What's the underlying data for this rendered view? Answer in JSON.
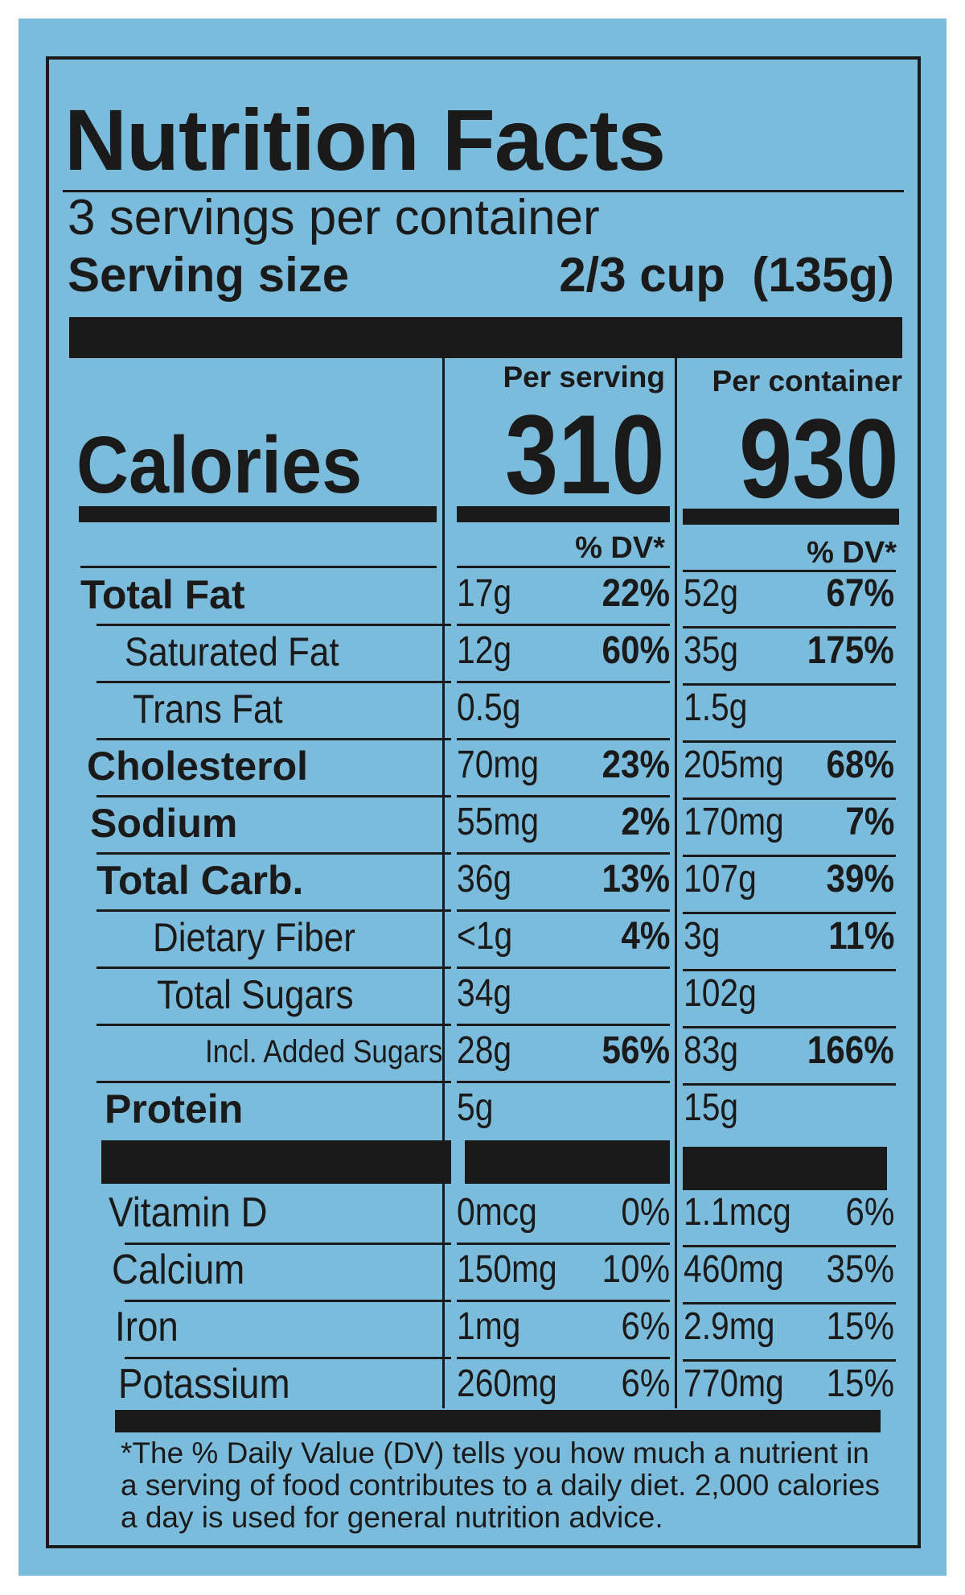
{
  "header": {
    "title": "Nutrition Facts",
    "servings": "3 servings per container",
    "serving_size_label": "Serving size",
    "serving_size_value": "2/3 cup  (135g)"
  },
  "columns": {
    "serving": "Per serving",
    "container": "Per container",
    "dv_heading": "% DV*"
  },
  "calories": {
    "label": "Calories",
    "serving": "310",
    "container": "930"
  },
  "nutrients": [
    {
      "name": "Total Fat",
      "serving": {
        "amount": "17g",
        "dv": "22%"
      },
      "container": {
        "amount": "52g",
        "dv": "67%"
      }
    },
    {
      "name": "Saturated Fat",
      "serving": {
        "amount": "12g",
        "dv": "60%"
      },
      "container": {
        "amount": "35g",
        "dv": "175%"
      }
    },
    {
      "name": "Trans Fat",
      "serving": {
        "amount": "0.5g"
      },
      "container": {
        "amount": "1.5g"
      }
    },
    {
      "name": "Cholesterol",
      "serving": {
        "amount": "70mg",
        "dv": "23%"
      },
      "container": {
        "amount": "205mg",
        "dv": "68%"
      }
    },
    {
      "name": "Sodium",
      "serving": {
        "amount": "55mg",
        "dv": "2%"
      },
      "container": {
        "amount": "170mg",
        "dv": "7%"
      }
    },
    {
      "name": "Total Carb.",
      "serving": {
        "amount": "36g",
        "dv": "13%"
      },
      "container": {
        "amount": "107g",
        "dv": "39%"
      }
    },
    {
      "name": "Dietary Fiber",
      "serving": {
        "amount": "<1g",
        "dv": "4%"
      },
      "container": {
        "amount": "3g",
        "dv": "11%"
      }
    },
    {
      "name": "Total Sugars",
      "serving": {
        "amount": "34g"
      },
      "container": {
        "amount": "102g"
      }
    },
    {
      "name": "Incl. Added Sugars",
      "serving": {
        "amount": "28g",
        "dv": "56%"
      },
      "container": {
        "amount": "83g",
        "dv": "166%"
      }
    },
    {
      "name": "Protein",
      "serving": {
        "amount": "5g"
      },
      "container": {
        "amount": "15g"
      }
    }
  ],
  "vitamins": [
    {
      "name": "Vitamin D",
      "serving": {
        "amount": "0mcg",
        "dv": "0%"
      },
      "container": {
        "amount": "1.1mcg",
        "dv": "6%"
      }
    },
    {
      "name": "Calcium",
      "serving": {
        "amount": "150mg",
        "dv": "10%"
      },
      "container": {
        "amount": "460mg",
        "dv": "35%"
      }
    },
    {
      "name": "Iron",
      "serving": {
        "amount": "1mg",
        "dv": "6%"
      },
      "container": {
        "amount": "2.9mg",
        "dv": "15%"
      }
    },
    {
      "name": "Potassium",
      "serving": {
        "amount": "260mg",
        "dv": "6%"
      },
      "container": {
        "amount": "770mg",
        "dv": "15%"
      }
    }
  ],
  "footnote": "*The % Daily Value (DV) tells you how much a nutrient in a serving of food contributes to a daily diet. 2,000 calories a day is used for general nutrition advice."
}
